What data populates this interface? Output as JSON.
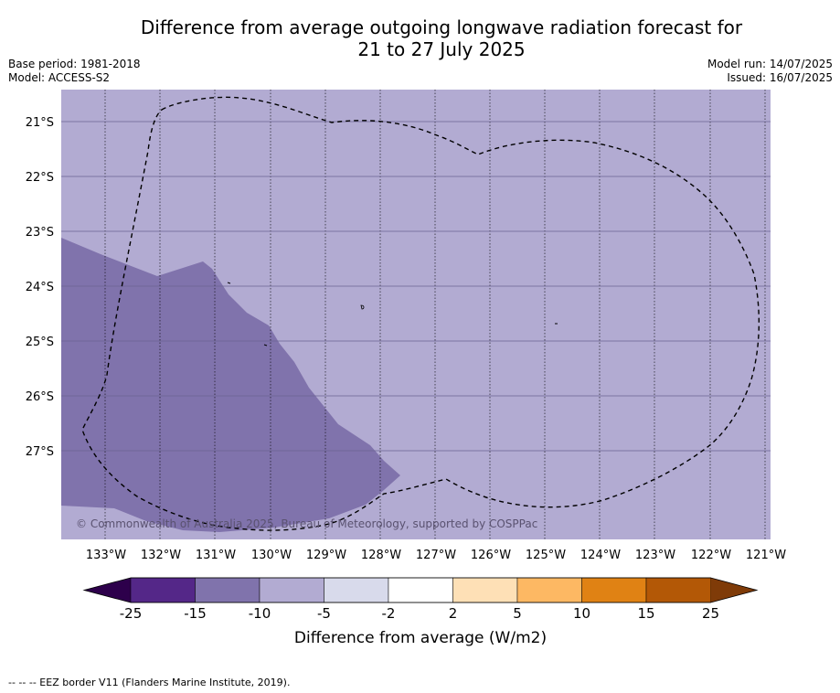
{
  "title_line1": "Difference from average outgoing longwave radiation forecast for",
  "title_line2": "21 to 27 July 2025",
  "base_period": "Base period: 1981-2018",
  "model": "Model: ACCESS-S2",
  "model_run": "Model run: 14/07/2025",
  "issued": "Issued: 16/07/2025",
  "copyright": "© Commonwealth of Australia 2025, Bureau of Meteorology, supported by COSPPac",
  "lat_labels": [
    "21°S",
    "22°S",
    "23°S",
    "24°S",
    "25°S",
    "26°S",
    "27°S"
  ],
  "lon_labels": [
    "133°W",
    "132°W",
    "131°W",
    "130°W",
    "129°W",
    "128°W",
    "127°W",
    "126°W",
    "125°W",
    "124°W",
    "123°W",
    "122°W",
    "121°W"
  ],
  "colorbar": {
    "ticks": [
      "-25",
      "-15",
      "-10",
      "-5",
      "-2",
      "2",
      "5",
      "10",
      "15",
      "25"
    ],
    "label": "Difference from average (W/m2)",
    "colors": [
      "#2d004b",
      "#542788",
      "#8073ac",
      "#b2abd2",
      "#d8daeb",
      "#ffffff",
      "#fee0b6",
      "#fdb863",
      "#e08214",
      "#b35806",
      "#7f3b08"
    ]
  },
  "footnote": "-- -- -- EEZ border V11 (Flanders Marine Institute, 2019).",
  "map_colors": {
    "background_anomaly": "#b2abd2",
    "strong_anomaly": "#8073ac"
  }
}
